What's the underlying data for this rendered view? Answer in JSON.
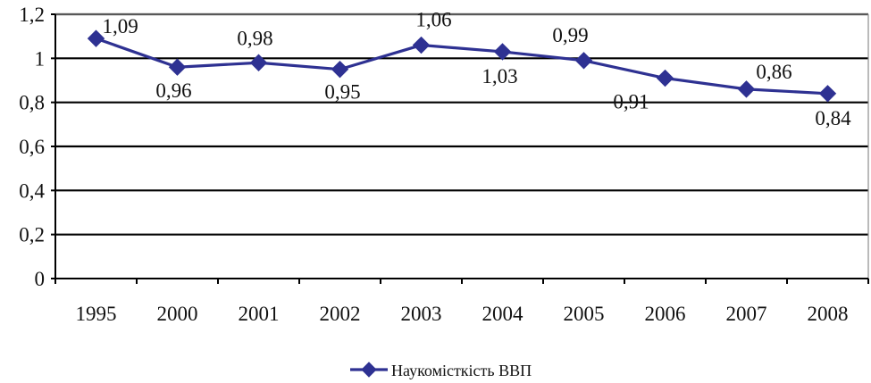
{
  "chart_data": {
    "type": "line",
    "categories": [
      "1995",
      "2000",
      "2001",
      "2002",
      "2003",
      "2004",
      "2005",
      "2006",
      "2007",
      "2008"
    ],
    "series": [
      {
        "name": "Наукомісткість ВВП",
        "values": [
          1.09,
          0.96,
          0.98,
          0.95,
          1.06,
          1.03,
          0.99,
          0.91,
          0.86,
          0.84
        ],
        "data_labels": [
          "1,09",
          "0,96",
          "0,98",
          "0,95",
          "1,06",
          "1,03",
          "0,99",
          "0,91",
          "0,86",
          "0,84"
        ],
        "color": "#2e3192"
      }
    ],
    "y_ticks": [
      0,
      0.2,
      0.4,
      0.6,
      0.8,
      1,
      1.2
    ],
    "y_tick_labels": [
      "0",
      "0,2",
      "0,4",
      "0,6",
      "0,8",
      "1",
      "1,2"
    ],
    "ylim": [
      0,
      1.2
    ],
    "grid": true,
    "legend_position": "bottom-center",
    "title": "",
    "xlabel": "",
    "ylabel": ""
  }
}
